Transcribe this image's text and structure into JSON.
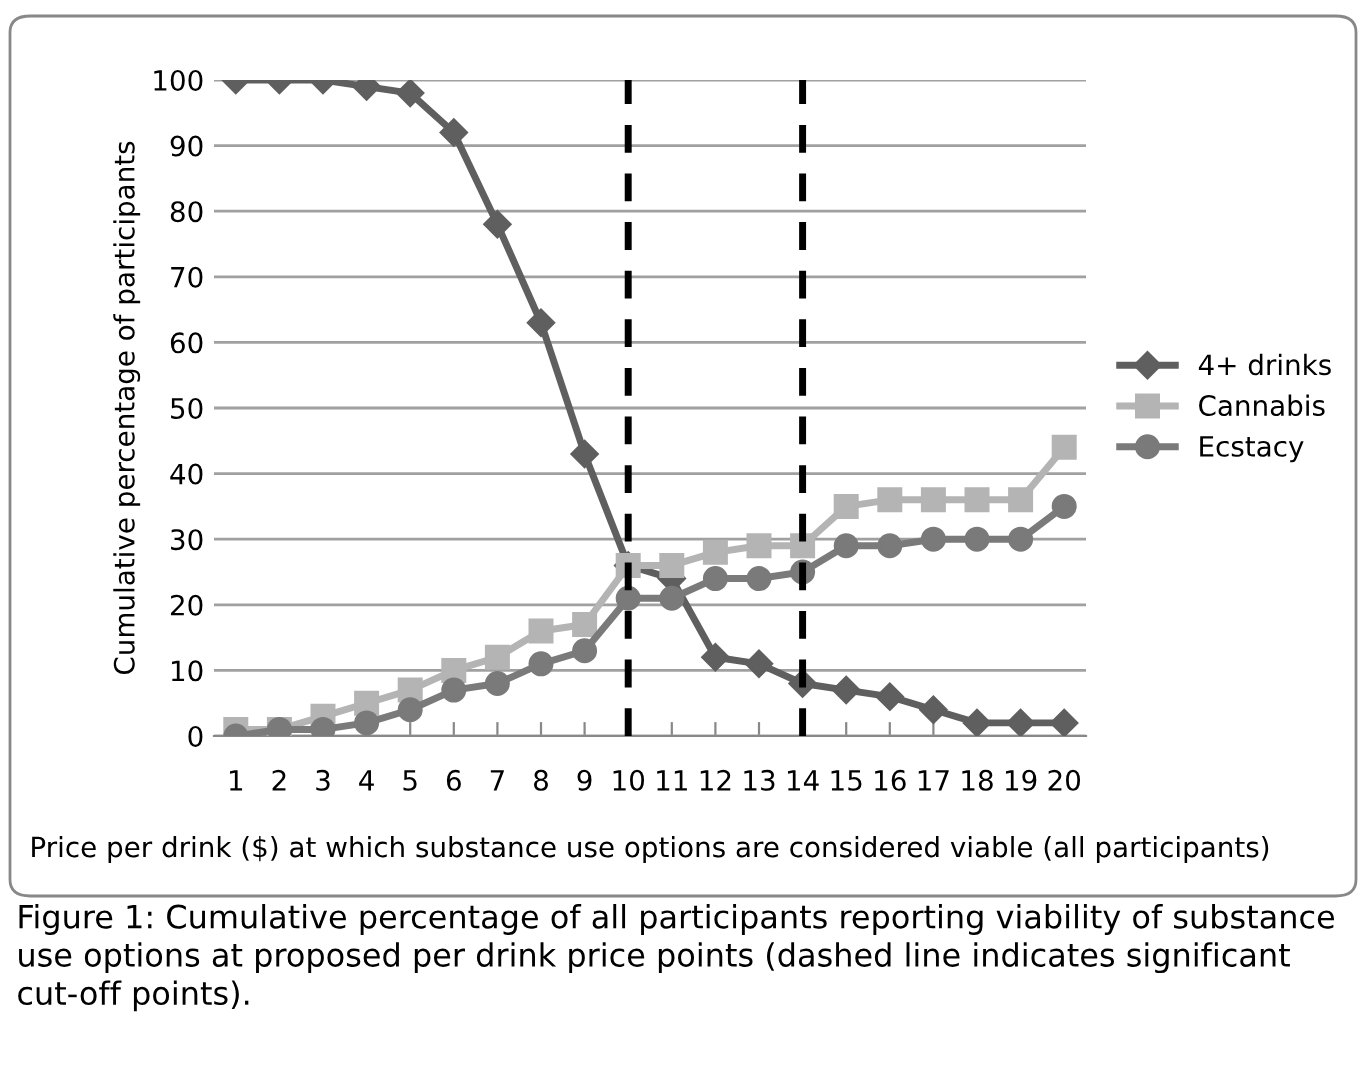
{
  "chart_data": {
    "type": "line",
    "categories": [
      "1",
      "2",
      "3",
      "4",
      "5",
      "6",
      "7",
      "8",
      "9",
      "10",
      "11",
      "12",
      "13",
      "14",
      "15",
      "16",
      "17",
      "18",
      "19",
      "20"
    ],
    "series": [
      {
        "name": "4+ drinks",
        "color": "#5f5f5f",
        "marker": "diamond",
        "values": [
          100,
          100,
          100,
          99,
          98,
          92,
          78,
          63,
          43,
          26,
          24,
          12,
          11,
          8,
          7,
          6,
          4,
          2,
          2,
          2
        ]
      },
      {
        "name": "Cannabis",
        "color": "#b4b4b4",
        "marker": "square",
        "values": [
          1,
          1,
          3,
          5,
          7,
          10,
          12,
          16,
          17,
          26,
          26,
          28,
          29,
          29,
          35,
          36,
          36,
          36,
          36,
          44
        ]
      },
      {
        "name": "Ecstacy",
        "color": "#7a7a7a",
        "marker": "circle",
        "values": [
          0,
          1,
          1,
          2,
          4,
          7,
          8,
          11,
          13,
          21,
          21,
          24,
          24,
          25,
          29,
          29,
          30,
          30,
          30,
          35
        ]
      }
    ],
    "ylim": [
      0,
      100
    ],
    "yticks": [
      0,
      10,
      20,
      30,
      40,
      50,
      60,
      70,
      80,
      90,
      100
    ],
    "ylabel": "Cumulative percentage of participants",
    "xlabel": "Price per drink ($) at which substance use options are considered viable (all participants)",
    "ref_lines": [
      {
        "axis": "x",
        "value": "10",
        "color": "#000000",
        "line_style": "dashed"
      },
      {
        "axis": "x",
        "value": "14",
        "color": "#000000",
        "line_style": "dashed"
      }
    ],
    "grid": "y",
    "legend": "right",
    "line_style": "solid",
    "annotations": [
      "Figure 1: Cumulative percentage of all participants reporting viability of substance use options at proposed per drink price points (dashed line indicates significant cut-off points)."
    ]
  }
}
